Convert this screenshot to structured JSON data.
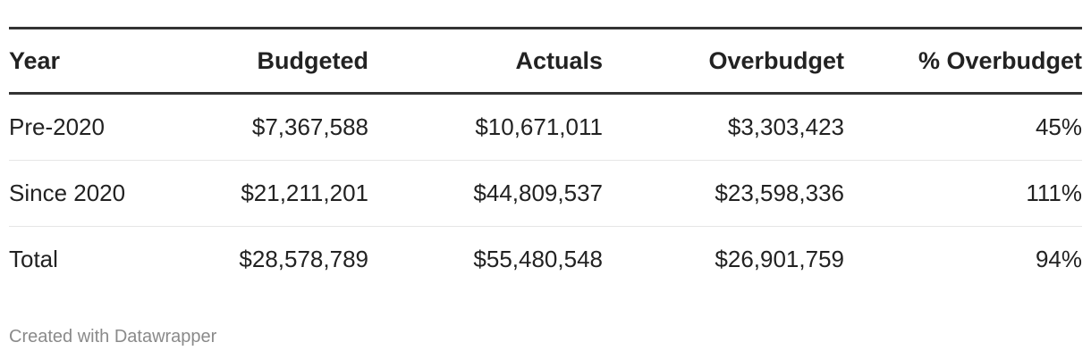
{
  "chart_data": {
    "type": "table",
    "columns": [
      "Year",
      "Budgeted",
      "Actuals",
      "Overbudget",
      "% Overbudget"
    ],
    "rows": [
      [
        "Pre-2020",
        "$7,367,588",
        "$10,671,011",
        "$3,303,423",
        "45%"
      ],
      [
        "Since 2020",
        "$21,211,201",
        "$44,809,537",
        "$23,598,336",
        "111%"
      ],
      [
        "Total",
        "$28,578,789",
        "$55,480,548",
        "$26,901,759",
        "94%"
      ]
    ]
  },
  "footer": {
    "credit": "Created with Datawrapper"
  }
}
